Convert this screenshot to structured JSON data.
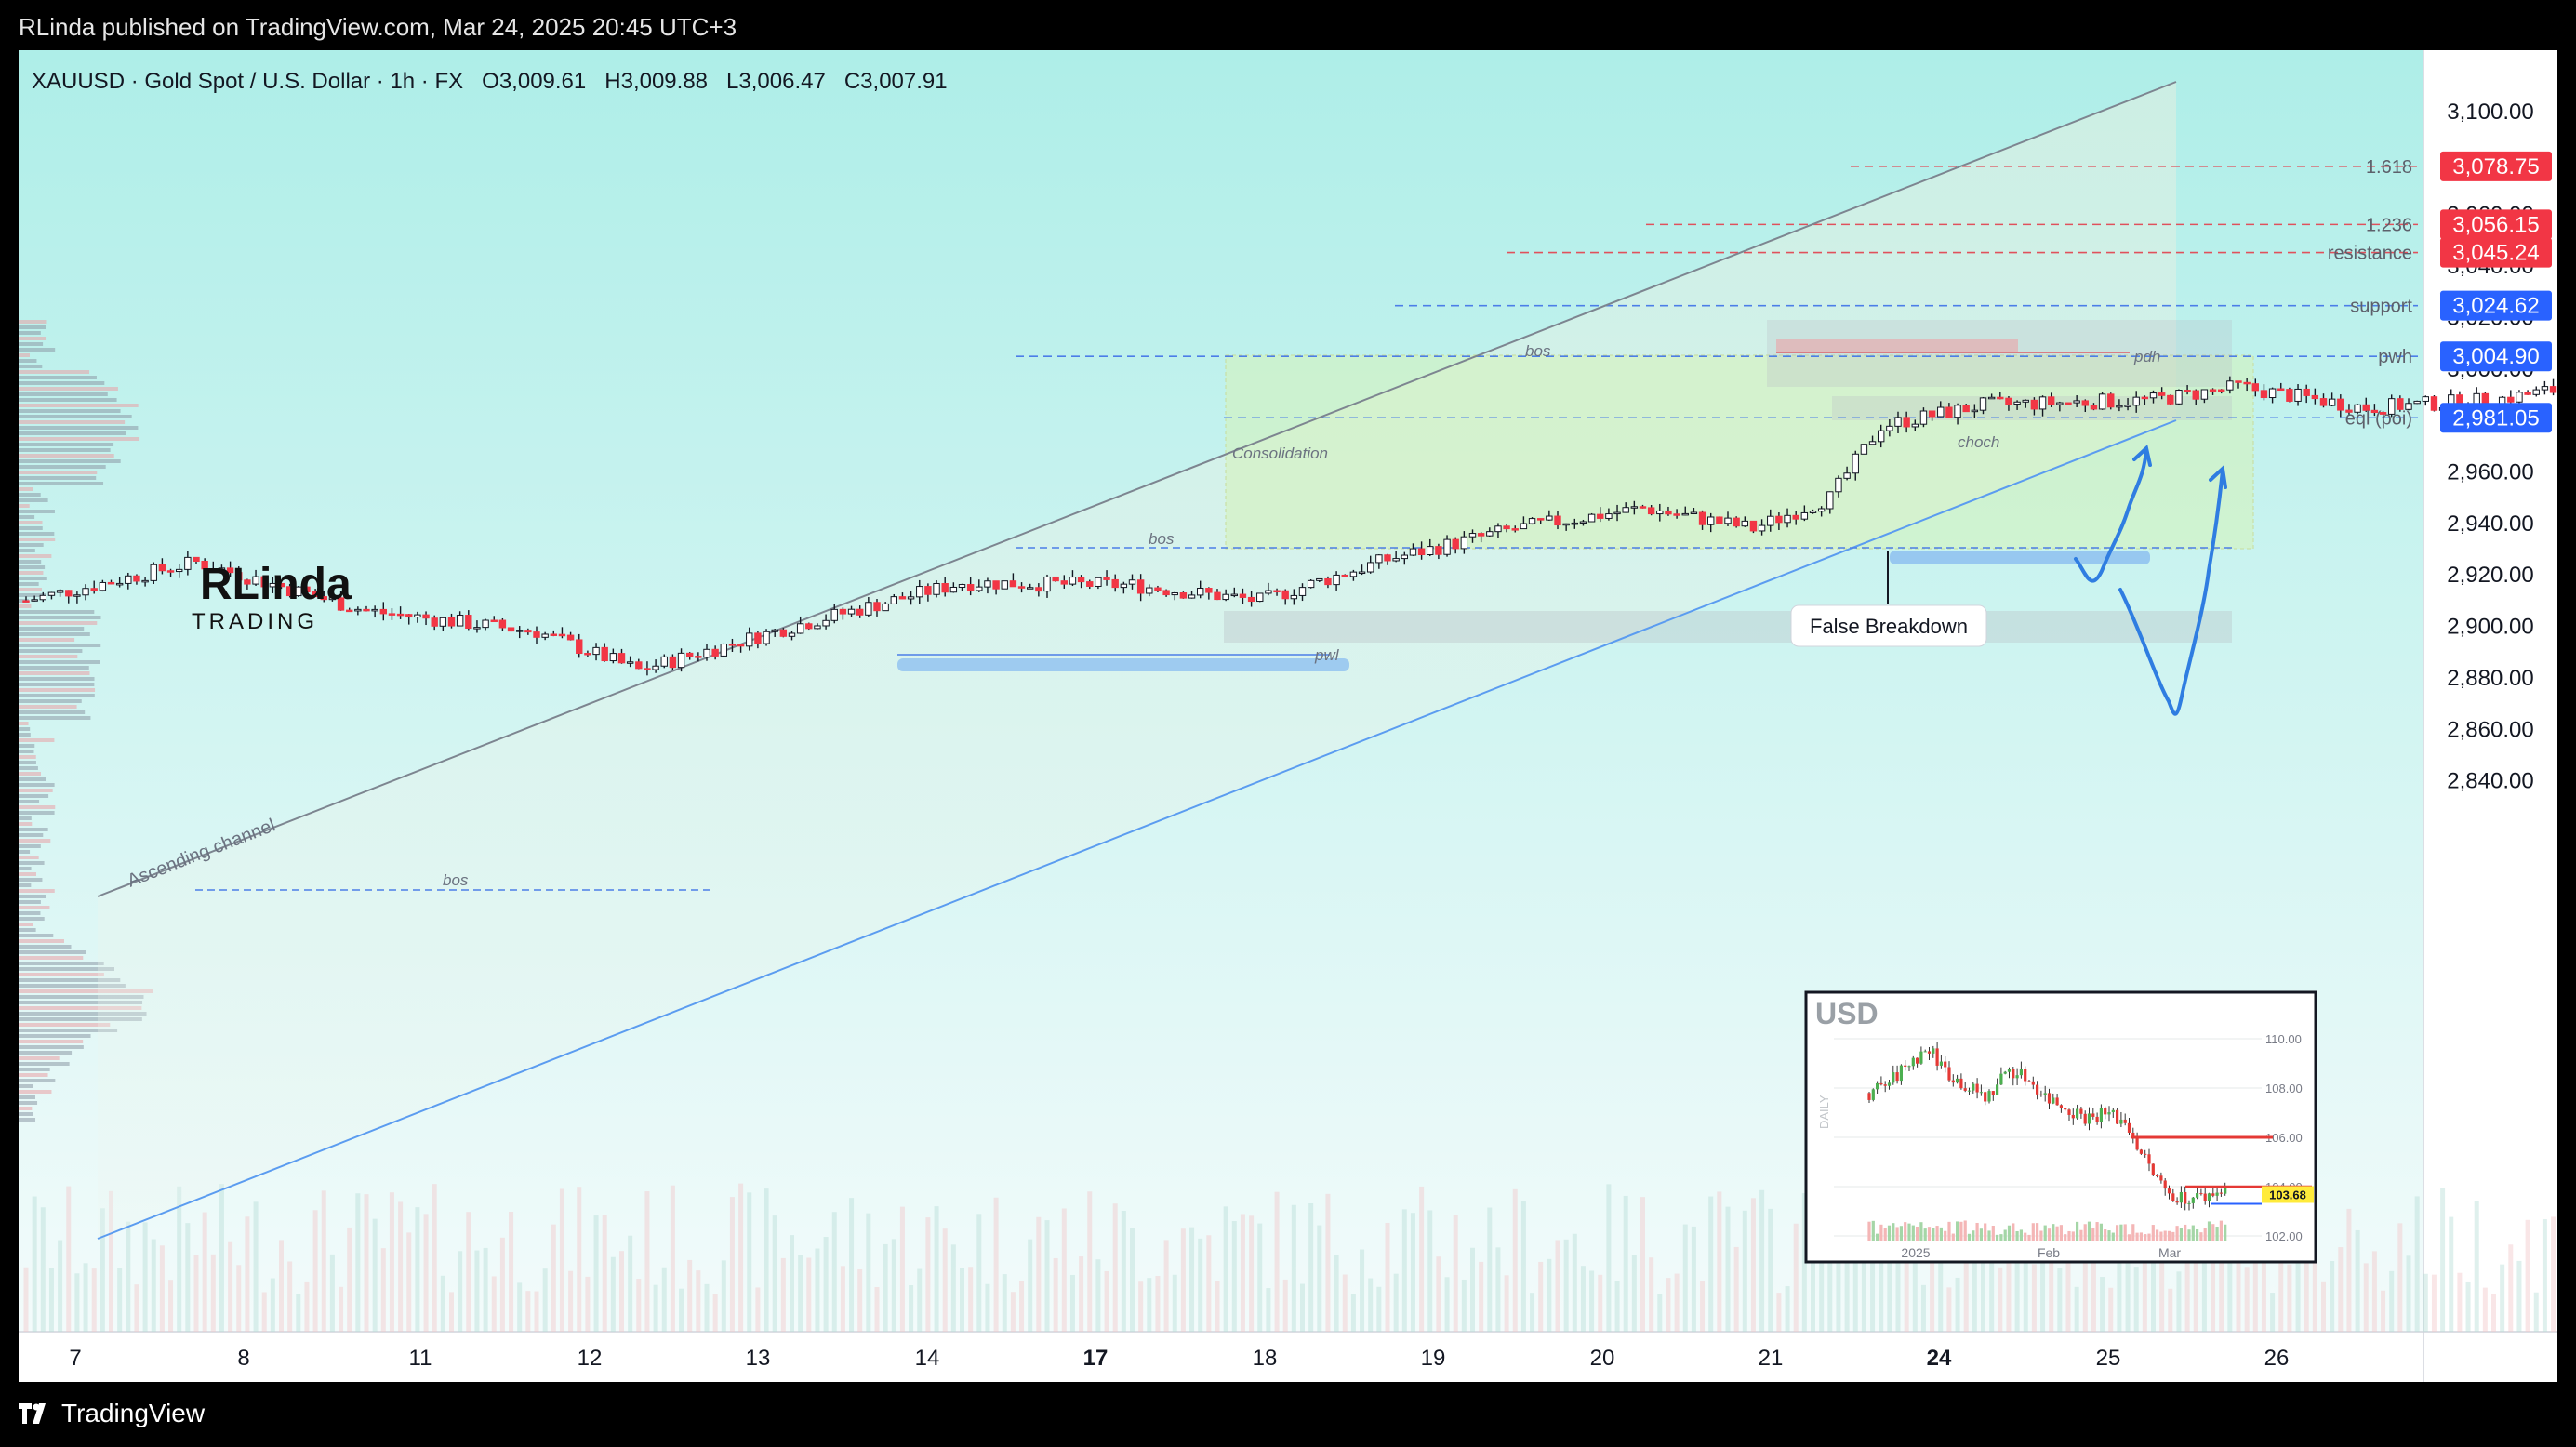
{
  "header": {
    "published": "RLinda published on TradingView.com, Mar 24, 2025 20:45 UTC+3",
    "brand": "TradingView"
  },
  "symbol_line": "XAUUSD · Gold Spot / U.S. Dollar · 1h · FX",
  "ohlc": {
    "open": "O3,009.61",
    "high": "H3,009.88",
    "low": "L3,006.47",
    "close": "C3,007.91"
  },
  "logo_text": {
    "top": "RLinda",
    "bottom": "TRADING"
  },
  "colors": {
    "up": "#089981",
    "down": "#f23645",
    "accent_blue": "#2962ff",
    "red_label": "#f23645",
    "blue_label": "#2962ff"
  },
  "chart_data": {
    "type": "candlestick",
    "y_axis": {
      "min": 2830,
      "max": 3110,
      "ticks": [
        "3,100.00",
        "3,060.00",
        "3,040.00",
        "3,020.00",
        "3,000.00",
        "2,960.00",
        "2,940.00",
        "2,920.00",
        "2,900.00",
        "2,880.00",
        "2,860.00",
        "2,840.00"
      ],
      "tick_values": [
        3100,
        3060,
        3040,
        3020,
        3000,
        2960,
        2940,
        2920,
        2900,
        2880,
        2860,
        2840
      ]
    },
    "x_axis": {
      "labels": [
        "7",
        "8",
        "11",
        "12",
        "13",
        "14",
        "17",
        "18",
        "19",
        "20",
        "21",
        "24",
        "25",
        "26"
      ],
      "bold": [
        "17",
        "24"
      ]
    },
    "price_labels": [
      {
        "value": "3,078.75",
        "price": 3078.75,
        "color": "red",
        "tag": "1.618"
      },
      {
        "value": "3,056.15",
        "price": 3056.15,
        "color": "red",
        "tag": "1.236"
      },
      {
        "value": "3,045.24",
        "price": 3045.24,
        "color": "red",
        "tag": "resistance"
      },
      {
        "value": "3,024.62",
        "price": 3024.62,
        "color": "blue",
        "tag": "support"
      },
      {
        "value": "3,004.90",
        "price": 3004.9,
        "color": "blue",
        "tag": "pwh"
      },
      {
        "value": "2,981.05",
        "price": 2981.05,
        "color": "blue",
        "tag": "eql (poi)"
      }
    ],
    "annotations": {
      "channel": "Ascending channel",
      "consolidation": "Consolidation",
      "bos": "bos",
      "choch": "choch",
      "pdh": "pdh",
      "pwl": "pwl",
      "false_breakdown": "False Breakdown"
    },
    "anchors": [
      {
        "slot": 0,
        "price": 2910
      },
      {
        "slot": 20,
        "price": 2925
      },
      {
        "slot": 40,
        "price": 2906
      },
      {
        "slot": 60,
        "price": 2898
      },
      {
        "slot": 72,
        "price": 2883
      },
      {
        "slot": 90,
        "price": 2900
      },
      {
        "slot": 110,
        "price": 2917
      },
      {
        "slot": 130,
        "price": 2916
      },
      {
        "slot": 145,
        "price": 2910
      },
      {
        "slot": 160,
        "price": 2926
      },
      {
        "slot": 175,
        "price": 2938
      },
      {
        "slot": 190,
        "price": 2946
      },
      {
        "slot": 203,
        "price": 2938
      },
      {
        "slot": 212,
        "price": 2950
      },
      {
        "slot": 218,
        "price": 2978
      },
      {
        "slot": 230,
        "price": 2986
      },
      {
        "slot": 250,
        "price": 2988
      },
      {
        "slot": 260,
        "price": 2993
      },
      {
        "slot": 275,
        "price": 2985
      },
      {
        "slot": 290,
        "price": 2988
      },
      {
        "slot": 305,
        "price": 2996
      },
      {
        "slot": 320,
        "price": 3010
      },
      {
        "slot": 335,
        "price": 3033
      },
      {
        "slot": 350,
        "price": 3030
      },
      {
        "slot": 360,
        "price": 3042
      },
      {
        "slot": 372,
        "price": 3028
      },
      {
        "slot": 385,
        "price": 3048
      },
      {
        "slot": 398,
        "price": 3052
      },
      {
        "slot": 410,
        "price": 3036
      },
      {
        "slot": 425,
        "price": 3042
      },
      {
        "slot": 438,
        "price": 3044
      },
      {
        "slot": 447,
        "price": 3030
      },
      {
        "slot": 457,
        "price": 3023
      },
      {
        "slot": 463,
        "price": 3004
      },
      {
        "slot": 475,
        "price": 3015
      },
      {
        "slot": 485,
        "price": 3024
      },
      {
        "slot": 495,
        "price": 3018
      },
      {
        "slot": 503,
        "price": 3026
      },
      {
        "slot": 510,
        "price": 3021
      },
      {
        "slot": 518,
        "price": 3006
      }
    ],
    "inset": {
      "title": "USD",
      "side_label": "DAILY",
      "ticks": [
        "110.00",
        "108.00",
        "106.00",
        "104.00",
        "102.00"
      ],
      "tick_values": [
        110,
        108,
        106,
        104,
        102
      ],
      "last_value": "103.68",
      "x_labels": [
        "2025",
        "Feb",
        "Mar"
      ],
      "anchors": [
        107.8,
        108.2,
        109.0,
        109.6,
        108.6,
        108.0,
        107.6,
        108.8,
        108.4,
        107.6,
        107.2,
        106.8,
        107.0,
        106.6,
        105.0,
        103.8,
        103.5,
        103.6,
        103.9
      ]
    }
  }
}
